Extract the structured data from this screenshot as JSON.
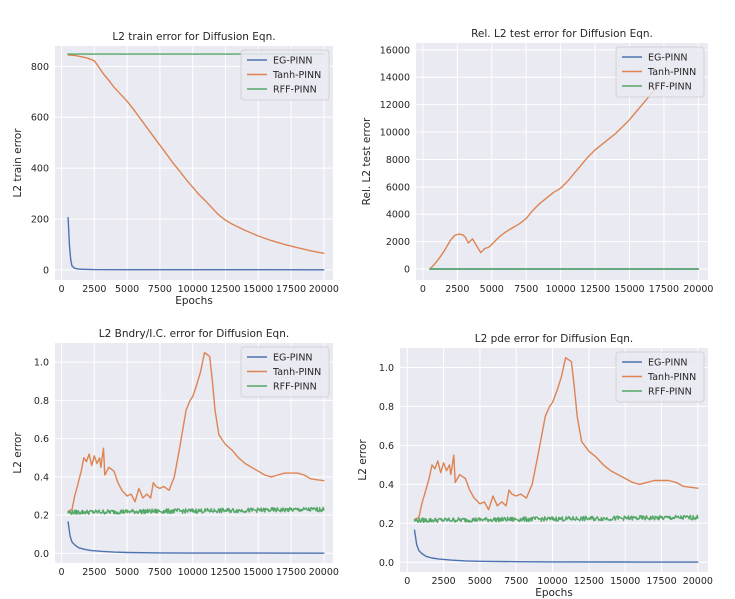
{
  "colors": {
    "eg": "#4c72b0",
    "tanh": "#dd8452",
    "rff": "#55a868",
    "axes_bg": "#eaeaf2"
  },
  "chart_data": [
    {
      "type": "line",
      "title": "L2 train error for Diffusion Eqn.",
      "xlabel": "Epochs",
      "ylabel": "L2 train error",
      "xlim": [
        -500,
        20700
      ],
      "ylim": [
        -40,
        880
      ],
      "xticks": [
        0,
        2500,
        5000,
        7500,
        10000,
        12500,
        15000,
        17500,
        20000
      ],
      "yticks": [
        0,
        200,
        400,
        600,
        800
      ],
      "grid": true,
      "legend_position": "top-right",
      "series": [
        {
          "name": "EG-PINN",
          "color": "#4c72b0",
          "x": [
            500,
            600,
            700,
            800,
            1000,
            1300,
            1700,
            2500,
            5000,
            10000,
            15000,
            20000
          ],
          "y": [
            205,
            100,
            40,
            15,
            6,
            3,
            2,
            1,
            0.5,
            0.3,
            0.3,
            0.2
          ]
        },
        {
          "name": "Tanh-PINN",
          "color": "#dd8452",
          "x": [
            500,
            1000,
            1500,
            2000,
            2500,
            2800,
            3200,
            3600,
            4000,
            4500,
            5000,
            5500,
            6000,
            6500,
            7000,
            7500,
            8000,
            8500,
            9000,
            9500,
            10000,
            10500,
            11000,
            11500,
            12000,
            12500,
            13000,
            13500,
            14000,
            15000,
            16000,
            17000,
            18000,
            19000,
            20000
          ],
          "y": [
            845,
            843,
            838,
            832,
            822,
            800,
            770,
            745,
            718,
            690,
            663,
            630,
            595,
            560,
            525,
            490,
            455,
            420,
            388,
            355,
            325,
            295,
            270,
            242,
            215,
            195,
            180,
            167,
            155,
            133,
            115,
            100,
            87,
            75,
            65
          ]
        },
        {
          "name": "RFF-PINN",
          "color": "#55a868",
          "x": [
            500,
            20000
          ],
          "y": [
            848,
            848
          ]
        }
      ]
    },
    {
      "type": "line",
      "title": "Rel. L2 test error for Diffusion Eqn.",
      "xlabel": "",
      "ylabel": "Rel. L2 test error",
      "xlim": [
        -500,
        20700
      ],
      "ylim": [
        -800,
        16500
      ],
      "xticks": [
        0,
        2500,
        5000,
        7500,
        10000,
        12500,
        15000,
        17500,
        20000
      ],
      "yticks": [
        0,
        2000,
        4000,
        6000,
        8000,
        10000,
        12000,
        14000,
        16000
      ],
      "grid": true,
      "legend_position": "top-right",
      "series": [
        {
          "name": "EG-PINN",
          "color": "#4c72b0",
          "x": [
            500,
            20000
          ],
          "y": [
            0,
            0
          ]
        },
        {
          "name": "Tanh-PINN",
          "color": "#dd8452",
          "x": [
            500,
            800,
            1200,
            1600,
            2000,
            2300,
            2600,
            2900,
            3100,
            3300,
            3600,
            3900,
            4200,
            4500,
            4800,
            5200,
            5600,
            6000,
            6500,
            7000,
            7500,
            8000,
            8500,
            9000,
            9500,
            10000,
            10500,
            11000,
            11500,
            12000,
            12500,
            13000,
            13500,
            14000,
            14500,
            15000,
            15500,
            16000,
            16500,
            17000
          ],
          "y": [
            0,
            300,
            800,
            1400,
            2100,
            2450,
            2550,
            2500,
            2300,
            1900,
            2200,
            1700,
            1200,
            1500,
            1600,
            2000,
            2400,
            2700,
            3000,
            3300,
            3700,
            4300,
            4800,
            5200,
            5600,
            5900,
            6400,
            7000,
            7600,
            8200,
            8700,
            9100,
            9500,
            9900,
            10400,
            10900,
            11500,
            12100,
            12700,
            13300
          ]
        },
        {
          "name": "RFF-PINN",
          "color": "#55a868",
          "x": [
            500,
            20000
          ],
          "y": [
            0,
            0
          ]
        }
      ]
    },
    {
      "type": "line",
      "title": "L2 Bndry/I.C. error for Diffusion Eqn.",
      "xlabel": "",
      "ylabel": "L2 error",
      "xlim": [
        -500,
        20700
      ],
      "ylim": [
        -0.05,
        1.1
      ],
      "xticks": [
        0,
        2500,
        5000,
        7500,
        10000,
        12500,
        15000,
        17500,
        20000
      ],
      "yticks": [
        0.0,
        0.2,
        0.4,
        0.6,
        0.8,
        1.0
      ],
      "grid": true,
      "legend_position": "top-right",
      "series": [
        {
          "name": "EG-PINN",
          "color": "#4c72b0",
          "x": [
            500,
            650,
            800,
            1000,
            1300,
            1700,
            2200,
            3000,
            4000,
            5000,
            7500,
            10000,
            15000,
            20000
          ],
          "y": [
            0.165,
            0.09,
            0.06,
            0.045,
            0.03,
            0.022,
            0.016,
            0.011,
            0.007,
            0.005,
            0.003,
            0.002,
            0.0015,
            0.001
          ]
        },
        {
          "name": "Tanh-PINN",
          "color": "#dd8452",
          "x": [
            500,
            800,
            1000,
            1200,
            1500,
            1700,
            1900,
            2100,
            2300,
            2500,
            2700,
            2900,
            3000,
            3200,
            3300,
            3600,
            4000,
            4300,
            4600,
            5000,
            5300,
            5600,
            5900,
            6200,
            6500,
            6800,
            7000,
            7200,
            7500,
            7800,
            8200,
            8600,
            9000,
            9500,
            9800,
            10000,
            10300,
            10600,
            10900,
            11100,
            11300,
            11500,
            11700,
            12000,
            12300,
            12500,
            13000,
            13500,
            14000,
            14500,
            15000,
            15500,
            16000,
            16500,
            17000,
            17500,
            18000,
            18500,
            19000,
            19500,
            20000
          ],
          "y": [
            0.22,
            0.23,
            0.3,
            0.35,
            0.43,
            0.5,
            0.48,
            0.52,
            0.46,
            0.51,
            0.47,
            0.5,
            0.45,
            0.55,
            0.41,
            0.45,
            0.43,
            0.37,
            0.33,
            0.3,
            0.31,
            0.27,
            0.34,
            0.29,
            0.31,
            0.29,
            0.37,
            0.35,
            0.34,
            0.35,
            0.33,
            0.4,
            0.55,
            0.75,
            0.8,
            0.82,
            0.88,
            0.95,
            1.05,
            1.04,
            1.03,
            0.9,
            0.75,
            0.62,
            0.59,
            0.57,
            0.54,
            0.5,
            0.47,
            0.45,
            0.43,
            0.41,
            0.4,
            0.41,
            0.42,
            0.42,
            0.42,
            0.41,
            0.39,
            0.385,
            0.38
          ]
        },
        {
          "name": "RFF-PINN",
          "color": "#55a868",
          "x": [
            500,
            20000
          ],
          "y": [
            0.215,
            0.23
          ],
          "noise": 0.012
        }
      ]
    },
    {
      "type": "line",
      "title": "L2 pde error for Diffusion Eqn.",
      "xlabel": "Epochs",
      "ylabel": "L2 error",
      "xlim": [
        -500,
        20700
      ],
      "ylim": [
        -0.05,
        1.1
      ],
      "xticks": [
        0,
        2500,
        5000,
        7500,
        10000,
        12500,
        15000,
        17500,
        20000
      ],
      "yticks": [
        0.0,
        0.2,
        0.4,
        0.6,
        0.8,
        1.0
      ],
      "grid": true,
      "legend_position": "top-right",
      "series": [
        {
          "name": "EG-PINN",
          "color": "#4c72b0",
          "x": [
            500,
            650,
            800,
            1000,
            1300,
            1700,
            2200,
            3000,
            4000,
            5000,
            7500,
            10000,
            15000,
            20000
          ],
          "y": [
            0.165,
            0.09,
            0.06,
            0.045,
            0.03,
            0.022,
            0.016,
            0.011,
            0.007,
            0.005,
            0.003,
            0.002,
            0.0015,
            0.001
          ]
        },
        {
          "name": "Tanh-PINN",
          "color": "#dd8452",
          "x": [
            500,
            800,
            1000,
            1200,
            1500,
            1700,
            1900,
            2100,
            2300,
            2500,
            2700,
            2900,
            3000,
            3200,
            3300,
            3600,
            4000,
            4300,
            4600,
            5000,
            5300,
            5600,
            5900,
            6200,
            6500,
            6800,
            7000,
            7200,
            7500,
            7800,
            8200,
            8600,
            9000,
            9500,
            9800,
            10000,
            10300,
            10600,
            10900,
            11100,
            11300,
            11500,
            11700,
            12000,
            12300,
            12500,
            13000,
            13500,
            14000,
            14500,
            15000,
            15500,
            16000,
            16500,
            17000,
            17500,
            18000,
            18500,
            19000,
            19500,
            20000
          ],
          "y": [
            0.22,
            0.23,
            0.3,
            0.35,
            0.43,
            0.5,
            0.48,
            0.52,
            0.46,
            0.51,
            0.47,
            0.5,
            0.45,
            0.55,
            0.41,
            0.45,
            0.43,
            0.37,
            0.33,
            0.3,
            0.31,
            0.27,
            0.34,
            0.29,
            0.31,
            0.29,
            0.37,
            0.35,
            0.34,
            0.35,
            0.33,
            0.4,
            0.55,
            0.75,
            0.8,
            0.82,
            0.88,
            0.95,
            1.05,
            1.04,
            1.03,
            0.9,
            0.75,
            0.62,
            0.59,
            0.57,
            0.54,
            0.5,
            0.47,
            0.45,
            0.43,
            0.41,
            0.4,
            0.41,
            0.42,
            0.42,
            0.42,
            0.41,
            0.39,
            0.385,
            0.38
          ]
        },
        {
          "name": "RFF-PINN",
          "color": "#55a868",
          "x": [
            500,
            20000
          ],
          "y": [
            0.215,
            0.23
          ],
          "noise": 0.012
        }
      ]
    }
  ]
}
